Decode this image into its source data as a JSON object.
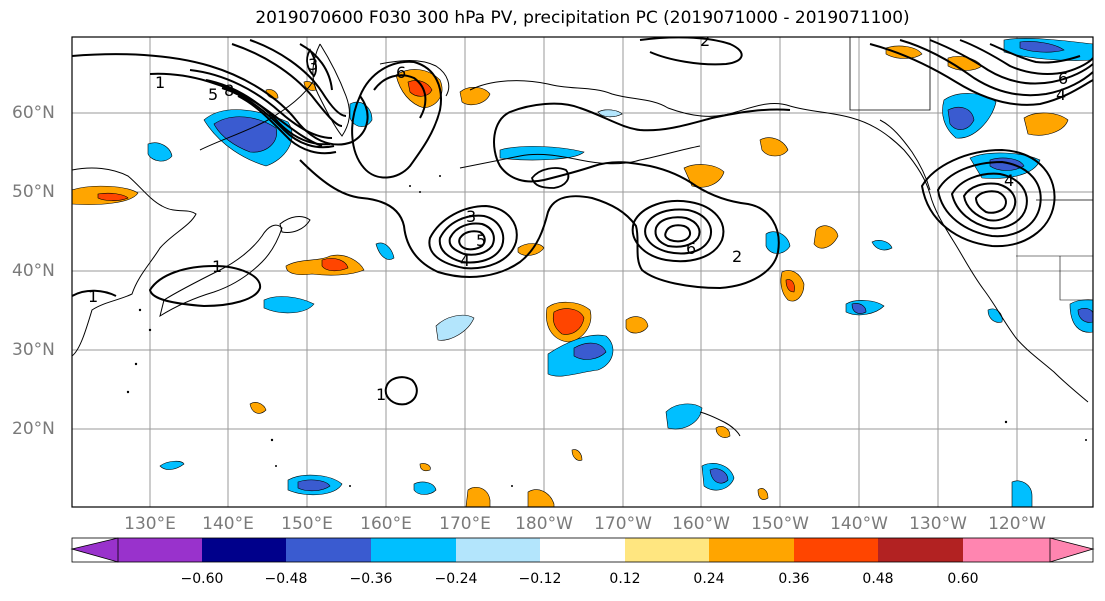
{
  "title": "2019070600 F030 300 hPa PV, precipitation PC (2019071000 - 2019071100)",
  "lat_labels": [
    "60°N",
    "50°N",
    "40°N",
    "30°N",
    "20°N"
  ],
  "lon_labels": [
    "130°E",
    "140°E",
    "150°E",
    "160°E",
    "170°E",
    "180°W",
    "170°W",
    "160°W",
    "150°W",
    "140°W",
    "130°W",
    "120°W"
  ],
  "colorbar": {
    "ticks": [
      "−0.60",
      "−0.48",
      "−0.36",
      "−0.24",
      "−0.12",
      "0.12",
      "0.24",
      "0.36",
      "0.48",
      "0.60"
    ],
    "colors": [
      "#9932cc",
      "#00008b",
      "#3a5bd0",
      "#00bfff",
      "#b3e5fc",
      "#ffffff",
      "#ffe680",
      "#ffa500",
      "#ff4500",
      "#b22222",
      "#ff85b0"
    ]
  },
  "contour_labels": [
    "1",
    "2",
    "3",
    "4",
    "5",
    "6",
    "8"
  ],
  "colors": {
    "grid": "#9a9a9a",
    "contour": "#000000",
    "coast": "#000000"
  }
}
